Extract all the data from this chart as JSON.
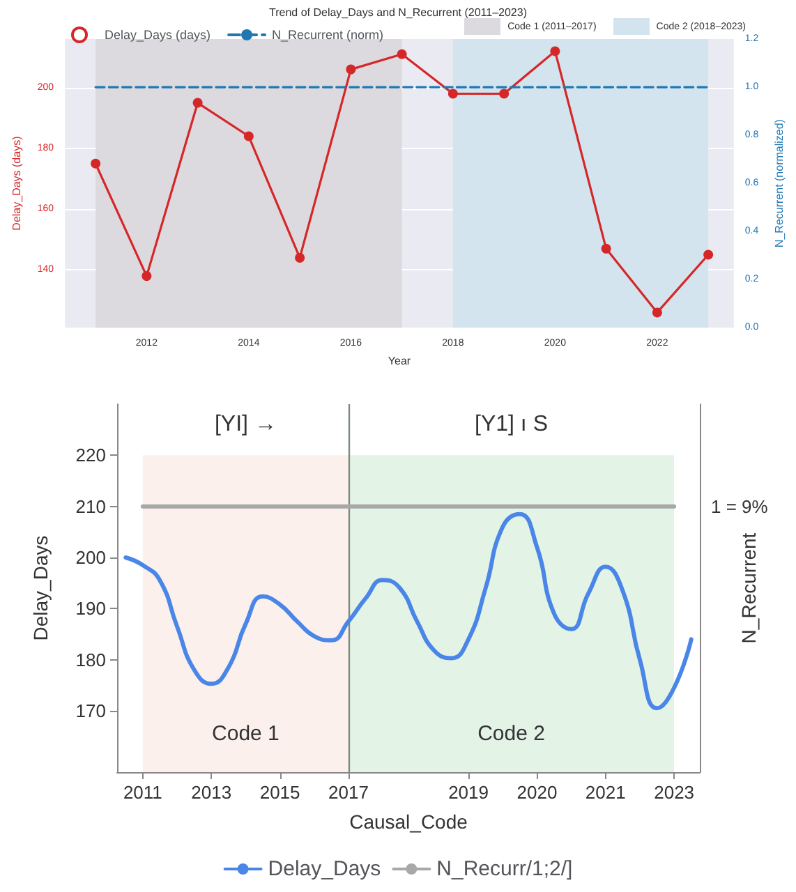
{
  "chart_data": [
    {
      "type": "line",
      "title": "Trend of Delay_Days and N_Recurrent (2011–2023)",
      "xlabel": "Year",
      "ylabel": "Delay_Days (days)",
      "y2label": "N_Recurrent (normalized)",
      "xlim": [
        2010.4,
        2023.5
      ],
      "xticks": [
        2012,
        2014,
        2016,
        2018,
        2020,
        2022
      ],
      "ylim": [
        121,
        216
      ],
      "yticks": [
        140,
        160,
        180,
        200
      ],
      "y2lim": [
        0,
        1.2
      ],
      "y2ticks": [
        {
          "value": 0,
          "label": "0.0"
        },
        {
          "value": 0.2,
          "label": "0.2"
        },
        {
          "value": 0.4,
          "label": "0.4"
        },
        {
          "value": 0.6,
          "label": "0.6"
        },
        {
          "value": 0.8,
          "label": "0.8"
        },
        {
          "value": 1,
          "label": "1.0"
        },
        {
          "value": 1.2,
          "label": "1.2"
        }
      ],
      "series": [
        {
          "name": "Delay_Days (days)",
          "color": "#d62728",
          "x": [
            2011,
            2012,
            2013,
            2014,
            2015,
            2016,
            2017,
            2018,
            2019,
            2020,
            2021,
            2022,
            2023
          ],
          "values": [
            175,
            138,
            195,
            184,
            144,
            206,
            211,
            198,
            198,
            212,
            147,
            126,
            145
          ]
        },
        {
          "name": "N_Recurrent (norm)",
          "color": "#1f77b4",
          "axis": "y2",
          "line_style": "dashed",
          "marker": "none",
          "x": [
            2011,
            2023
          ],
          "values": [
            1,
            1
          ]
        }
      ],
      "bands": [
        {
          "axis": "x",
          "from": 2011,
          "to": 2017,
          "label": "Code 1 (2011–2017)",
          "color": "#dcdadf"
        },
        {
          "axis": "x",
          "from": 2018,
          "to": 2023,
          "label": "Code 2 (2018–2023)",
          "color": "#d3e4ef"
        }
      ],
      "marker": "circle",
      "grid": true,
      "legend": "top"
    },
    {
      "type": "line",
      "xlabel": "Causal_Code",
      "ylabel": "Delay_Days",
      "y2label": "N_Recurrent",
      "categories": [
        null,
        "2011",
        null,
        null,
        null,
        "2013",
        null,
        null,
        null,
        "2015",
        null,
        null,
        null,
        "2017",
        null,
        null,
        null,
        null,
        null,
        null,
        "2019",
        null,
        null,
        null,
        "2020",
        null,
        null,
        null,
        "2021",
        null,
        null,
        null,
        "2023",
        null
      ],
      "ylim": [
        158,
        230
      ],
      "yticks": [
        170,
        180,
        190,
        200,
        210,
        220
      ],
      "series": [
        {
          "name": "Delay_Days",
          "color": "#4a86e8",
          "values": [
            200,
            198.5,
            195.5,
            186.5,
            178,
            175.3,
            178.5,
            187,
            192.4,
            190.8,
            187.5,
            184.6,
            183.8,
            187.5,
            192,
            195.6,
            194,
            187.5,
            181.8,
            180.3,
            184,
            194,
            206,
            208.5,
            202,
            189,
            186,
            193,
            198.2,
            193.5,
            180,
            170.5,
            174.5,
            184
          ]
        },
        {
          "name": "N_Recurr/1;2/]",
          "color": "#a8a8a8",
          "values": [
            null,
            210,
            210,
            210,
            210,
            210,
            210,
            210,
            210,
            210,
            210,
            210,
            210,
            210,
            210,
            210,
            210,
            210,
            210,
            210,
            210,
            210,
            210,
            210,
            210,
            210,
            210,
            210,
            210,
            210,
            210,
            210,
            210,
            null
          ]
        }
      ],
      "bands": [
        {
          "axis": "x",
          "from": "2011",
          "to": "2017",
          "label": "Code 1",
          "color": "#fbf0ec"
        },
        {
          "axis": "x",
          "from": "2017",
          "to": "2023",
          "label": "Code 2",
          "color": "#e3f3e6"
        }
      ],
      "ref_lines": [
        {
          "axis": "x",
          "value": "2017",
          "color": "#7f8a7f"
        }
      ],
      "annotations": [
        "[YI] →",
        "[Y1] ı S",
        "1 = 9%"
      ],
      "marker": "none",
      "grid": false,
      "legend": "bottom"
    }
  ]
}
